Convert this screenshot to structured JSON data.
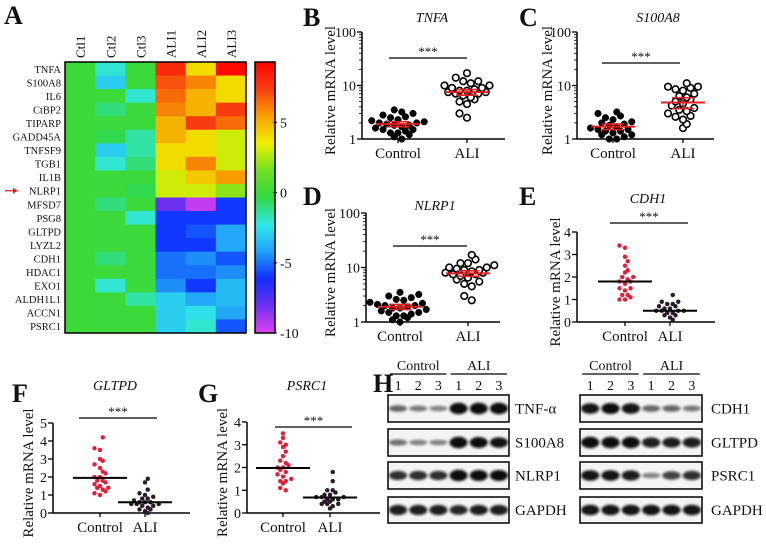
{
  "chart_data": [
    {
      "panel": "A",
      "type": "heatmap",
      "columns": [
        "Ctl1",
        "Ctl2",
        "Ctl3",
        "ALI1",
        "ALI2",
        "ALI3"
      ],
      "rows": [
        "TNFA",
        "S100A8",
        "IL6",
        "CtBP2",
        "TIPARP",
        "GADD45A",
        "TNFSF9",
        "TGB1",
        "IL1B",
        "NLRP1",
        "MFSD7",
        "PSG8",
        "GLTPD",
        "LYZL2",
        "CDH1",
        "HDAC1",
        "EXO1",
        "ALDH1L1",
        "ACCN1",
        "PSRC1"
      ],
      "values": [
        [
          0,
          -2,
          0,
          8,
          4,
          9
        ],
        [
          0,
          -3,
          0,
          7,
          6,
          4
        ],
        [
          0,
          0,
          -2,
          6.5,
          5,
          4
        ],
        [
          0,
          -1,
          0,
          6,
          5,
          7.5
        ],
        [
          0,
          0,
          0,
          5,
          7.5,
          6.5
        ],
        [
          0,
          -0.5,
          -1.5,
          5,
          4,
          3
        ],
        [
          0,
          -3,
          -1.5,
          4,
          4,
          3
        ],
        [
          0,
          -2,
          -1,
          4,
          6,
          3
        ],
        [
          0,
          0,
          0,
          3,
          4.5,
          5.5
        ],
        [
          0,
          0,
          -0.5,
          3,
          3,
          2
        ],
        [
          0,
          -1,
          0,
          -8,
          -9.5,
          -6
        ],
        [
          0,
          0,
          -2,
          -6,
          -6,
          -6
        ],
        [
          0,
          0,
          0,
          -6,
          -5.5,
          -4
        ],
        [
          0,
          0,
          0,
          -6,
          -6,
          -4
        ],
        [
          0,
          -1,
          0,
          -5,
          -4.5,
          -5.5
        ],
        [
          0,
          0,
          0,
          -5,
          -5,
          -4.5
        ],
        [
          0,
          -2,
          0,
          -4.5,
          -6,
          -3.5
        ],
        [
          0,
          0,
          -1.5,
          -3,
          -4,
          -3.5
        ],
        [
          0,
          0,
          0,
          -3,
          -2.5,
          -4
        ],
        [
          0,
          0,
          0,
          -3,
          -2,
          -5.5
        ]
      ],
      "highlighted_row": "NLRP1",
      "arrow_color": "#e02020",
      "colorbar": {
        "min": -10,
        "max": 9.3,
        "ticks": [
          "5",
          "0",
          "-5",
          "-10"
        ],
        "colors": [
          "#e040f0",
          "#7030f0",
          "#1030ff",
          "#20a0f8",
          "#30e8e8",
          "#30d840",
          "#70e020",
          "#f0f000",
          "#f8a000",
          "#f84010",
          "#ff0000"
        ]
      }
    },
    {
      "panel": "B",
      "type": "scatter",
      "title": "TNFA",
      "ylabel": "Relative mRNA level",
      "yscale": "log",
      "ylim": [
        1,
        100
      ],
      "yticks": [
        "1",
        "10",
        "100"
      ],
      "categories": [
        "Control",
        "ALI"
      ],
      "significance": "***",
      "series": [
        {
          "values": [
            1.0,
            1.1,
            1.2,
            1.3,
            1.3,
            1.4,
            1.5,
            1.5,
            1.6,
            1.7,
            1.8,
            1.8,
            1.9,
            2.0,
            2.0,
            2.1,
            2.2,
            2.3,
            2.5,
            2.6,
            2.8,
            3.0,
            3.2,
            3.5
          ],
          "marker": "filled",
          "color": "#000000"
        },
        {
          "values": [
            2.5,
            3.0,
            4.5,
            5,
            5.5,
            6,
            6.5,
            7,
            7,
            7.5,
            7.5,
            8,
            8,
            8.5,
            9,
            9,
            10,
            10,
            11,
            12,
            12,
            14,
            17
          ],
          "marker": "open",
          "color": "#000000"
        }
      ],
      "center": [
        1.9,
        7.5
      ],
      "error": [
        0.2,
        0.9
      ],
      "center_color": "#e02020"
    },
    {
      "panel": "C",
      "type": "scatter",
      "title": "S100A8",
      "ylabel": "Relative mRNA level",
      "yscale": "log",
      "ylim": [
        1,
        100
      ],
      "yticks": [
        "1",
        "10",
        "100"
      ],
      "categories": [
        "Control",
        "ALI"
      ],
      "significance": "***",
      "series": [
        {
          "values": [
            1.0,
            1.0,
            1.1,
            1.2,
            1.2,
            1.3,
            1.4,
            1.4,
            1.5,
            1.5,
            1.6,
            1.7,
            1.8,
            1.9,
            2.0,
            2.1,
            2.3,
            2.5,
            2.7,
            3.0,
            3.2
          ],
          "marker": "filled",
          "color": "#000000"
        },
        {
          "values": [
            1.6,
            1.9,
            2.3,
            2.6,
            2.7,
            3.0,
            3.3,
            3.5,
            3.8,
            4.2,
            4.6,
            5,
            5.5,
            6,
            6.3,
            7,
            8,
            8.5,
            9,
            9.5,
            9.5,
            11
          ],
          "marker": "open",
          "color": "#000000"
        }
      ],
      "center": [
        1.7,
        4.8
      ],
      "error": [
        0.2,
        1.1
      ],
      "center_color": "#e02020"
    },
    {
      "panel": "D",
      "type": "scatter",
      "title": "NLRP1",
      "ylabel": "Relative mRNA level",
      "yscale": "log",
      "ylim": [
        1,
        100
      ],
      "yticks": [
        "1",
        "10",
        "100"
      ],
      "categories": [
        "Control",
        "ALI"
      ],
      "significance": "***",
      "series": [
        {
          "values": [
            1.0,
            1.1,
            1.2,
            1.3,
            1.3,
            1.4,
            1.5,
            1.5,
            1.6,
            1.7,
            1.8,
            1.8,
            1.9,
            2.0,
            2.0,
            2.1,
            2.2,
            2.3,
            2.5,
            2.6,
            2.8,
            3.0,
            3.2,
            3.5
          ],
          "marker": "filled",
          "color": "#000000"
        },
        {
          "values": [
            2.5,
            3.0,
            4.5,
            5,
            5.5,
            6,
            6.5,
            7,
            7.5,
            7.5,
            8,
            8,
            8.5,
            9,
            9,
            9.5,
            10,
            10,
            11,
            12,
            12,
            14,
            17
          ],
          "marker": "open",
          "color": "#000000"
        }
      ],
      "center": [
        1.9,
        7.8
      ],
      "error": [
        0.2,
        0.9
      ],
      "center_color": "#e02020"
    },
    {
      "panel": "E",
      "type": "scatter",
      "title": "CDH1",
      "ylabel": "Relative mRNA level",
      "yscale": "linear",
      "ylim": [
        0,
        4
      ],
      "yticks": [
        "0",
        "1",
        "2",
        "3",
        "4"
      ],
      "categories": [
        "Control",
        "ALI"
      ],
      "significance": "***",
      "series": [
        {
          "values": [
            1.0,
            1.0,
            1.1,
            1.2,
            1.2,
            1.4,
            1.5,
            1.5,
            1.7,
            1.8,
            1.8,
            1.9,
            2.0,
            2.0,
            2.2,
            2.3,
            2.5,
            2.7,
            2.9,
            3.3,
            3.4
          ],
          "marker": "dot",
          "color": "#e0203a"
        },
        {
          "values": [
            0.1,
            0.2,
            0.3,
            0.3,
            0.4,
            0.4,
            0.5,
            0.5,
            0.5,
            0.5,
            0.6,
            0.6,
            0.7,
            0.7,
            0.8,
            0.8,
            0.9,
            0.9,
            1.2
          ],
          "marker": "dot",
          "color": "#2a1a2a"
        }
      ],
      "center": [
        1.8,
        0.5
      ],
      "center_color": "#000000"
    },
    {
      "panel": "F",
      "type": "scatter",
      "title": "GLTPD",
      "ylabel": "Relative mRNA level",
      "yscale": "linear",
      "ylim": [
        0,
        5
      ],
      "yticks": [
        "0",
        "1",
        "2",
        "3",
        "4",
        "5"
      ],
      "categories": [
        "Control",
        "ALI"
      ],
      "significance": "***",
      "series": [
        {
          "values": [
            1.0,
            1.1,
            1.2,
            1.3,
            1.4,
            1.4,
            1.5,
            1.6,
            1.7,
            1.8,
            1.8,
            2.0,
            2.0,
            2.2,
            2.3,
            2.5,
            2.7,
            2.9,
            3.0,
            3.5,
            3.6,
            4.2
          ],
          "marker": "dot",
          "color": "#e0203a"
        },
        {
          "values": [
            0,
            0.1,
            0.2,
            0.2,
            0.3,
            0.4,
            0.4,
            0.5,
            0.5,
            0.5,
            0.6,
            0.6,
            0.6,
            0.7,
            0.8,
            0.8,
            0.9,
            1.0,
            1.1,
            1.3,
            1.7,
            1.9
          ],
          "marker": "dot",
          "color": "#2a1a2a"
        }
      ],
      "center": [
        1.95,
        0.6
      ],
      "center_color": "#000000"
    },
    {
      "panel": "G",
      "type": "scatter",
      "title": "PSRC1",
      "ylabel": "Relative mRNA level",
      "yscale": "linear",
      "ylim": [
        0,
        4
      ],
      "yticks": [
        "0",
        "1",
        "2",
        "3",
        "4"
      ],
      "categories": [
        "Control",
        "ALI"
      ],
      "significance": "***",
      "series": [
        {
          "values": [
            1.0,
            1.1,
            1.3,
            1.4,
            1.4,
            1.5,
            1.6,
            1.7,
            1.8,
            1.9,
            2.0,
            2.0,
            2.1,
            2.2,
            2.3,
            2.5,
            2.7,
            2.9,
            3.0,
            3.1,
            3.3,
            3.5
          ],
          "marker": "dot",
          "color": "#e0203a"
        },
        {
          "values": [
            0.2,
            0.3,
            0.4,
            0.4,
            0.4,
            0.5,
            0.5,
            0.6,
            0.6,
            0.6,
            0.7,
            0.7,
            0.7,
            0.8,
            0.8,
            0.9,
            1.0,
            1.0,
            1.4,
            1.8
          ],
          "marker": "dot",
          "color": "#2a1a2a"
        }
      ],
      "center": [
        1.98,
        0.68
      ],
      "center_color": "#000000"
    },
    {
      "panel": "H",
      "type": "western-blot",
      "blots": [
        {
          "groups": [
            "Control",
            "ALI"
          ],
          "lanes": [
            "1",
            "2",
            "3",
            "1",
            "2",
            "3"
          ],
          "rows": [
            {
              "label": "TNF-α",
              "intensities": [
                0.45,
                0.35,
                0.3,
                1,
                1,
                1
              ]
            },
            {
              "label": "S100A8",
              "intensities": [
                0.4,
                0.3,
                0.3,
                1,
                0.95,
                0.9
              ]
            },
            {
              "label": "NLRP1",
              "intensities": [
                0.75,
                0.75,
                0.75,
                1,
                0.95,
                0.95
              ]
            },
            {
              "label": "GAPDH",
              "intensities": [
                0.85,
                0.85,
                0.85,
                0.8,
                0.85,
                0.85
              ]
            }
          ]
        },
        {
          "groups": [
            "Control",
            "ALI"
          ],
          "lanes": [
            "1",
            "2",
            "3",
            "1",
            "2",
            "3"
          ],
          "rows": [
            {
              "label": "CDH1",
              "intensities": [
                0.9,
                0.95,
                0.9,
                0.45,
                0.45,
                0.35
              ]
            },
            {
              "label": "GLTPD",
              "intensities": [
                1,
                1,
                1,
                0.85,
                0.85,
                0.85
              ]
            },
            {
              "label": "PSRC1",
              "intensities": [
                0.9,
                0.9,
                0.85,
                0.3,
                0.65,
                0.75
              ]
            },
            {
              "label": "GAPDH",
              "intensities": [
                0.9,
                0.9,
                0.9,
                0.9,
                0.9,
                0.9
              ]
            }
          ]
        }
      ]
    }
  ]
}
